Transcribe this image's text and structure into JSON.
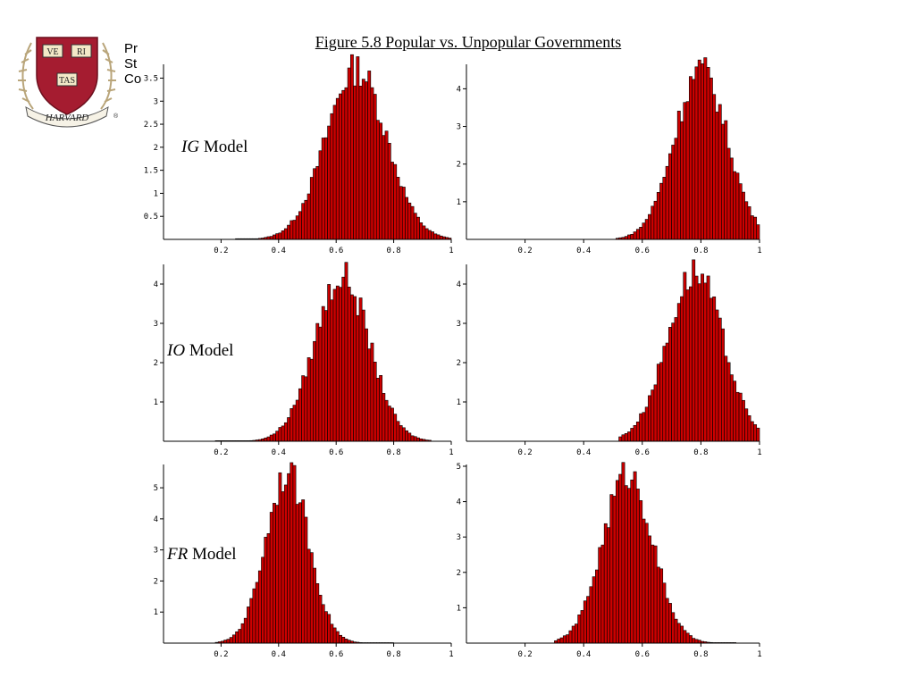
{
  "title": "Figure 5.8 Popular vs. Unpopular Governments",
  "side_text": [
    "Pr",
    "St",
    "Co"
  ],
  "logo": {
    "name": "harvard-shield",
    "motto_parts": [
      "VE",
      "RI",
      "TAS"
    ],
    "banner": "HARVARD",
    "mark": "®",
    "colors": {
      "shield": "#a51c30",
      "book": "#f3e9c8",
      "laurel": "#b9a57a"
    }
  },
  "colors": {
    "bar_fill": "#cc0000",
    "bar_stroke": "#000000"
  },
  "row_labels": [
    {
      "abbr": "IG",
      "rest": " Model"
    },
    {
      "abbr": "IO",
      "rest": " Model"
    },
    {
      "abbr": "FR",
      "rest": " Model"
    }
  ],
  "chart_data": [
    {
      "type": "bar",
      "row": 0,
      "col": 0,
      "title": "",
      "xlabel": "",
      "ylabel": "",
      "xlim": [
        0,
        1
      ],
      "ylim": [
        0,
        3.8
      ],
      "xticks": [
        0.2,
        0.4,
        0.6,
        0.8,
        1
      ],
      "yticks": [
        0.5,
        1,
        1.5,
        2,
        2.5,
        3,
        3.5
      ],
      "xtick_labels": [
        "0.2",
        "0.4",
        "0.6",
        "0.8",
        "1"
      ],
      "ytick_labels": [
        "0.5",
        "1",
        "1.5",
        "2",
        "2.5",
        "3",
        "3.5"
      ],
      "dist": {
        "mu": 0.67,
        "sigma": 0.105,
        "peak": 3.7,
        "left": 0.25,
        "right": 1.0
      }
    },
    {
      "type": "bar",
      "row": 0,
      "col": 1,
      "title": "",
      "xlabel": "",
      "ylabel": "",
      "xlim": [
        0,
        1
      ],
      "ylim": [
        0,
        4.65
      ],
      "xticks": [
        0.2,
        0.4,
        0.6,
        0.8,
        1
      ],
      "yticks": [
        1,
        2,
        3,
        4
      ],
      "xtick_labels": [
        "0.2",
        "0.4",
        "0.6",
        "0.8",
        "1"
      ],
      "ytick_labels": [
        "1",
        "2",
        "3",
        "4"
      ],
      "dist": {
        "mu": 0.8,
        "sigma": 0.09,
        "peak": 4.5,
        "left": 0.51,
        "right": 1.0
      }
    },
    {
      "type": "bar",
      "row": 1,
      "col": 0,
      "title": "",
      "xlabel": "",
      "ylabel": "",
      "xlim": [
        0,
        1
      ],
      "ylim": [
        0,
        4.5
      ],
      "xticks": [
        0.2,
        0.4,
        0.6,
        0.8,
        1
      ],
      "yticks": [
        1,
        2,
        3,
        4
      ],
      "xtick_labels": [
        "0.2",
        "0.4",
        "0.6",
        "0.8",
        "1"
      ],
      "ytick_labels": [
        "1",
        "2",
        "3",
        "4"
      ],
      "dist": {
        "mu": 0.62,
        "sigma": 0.095,
        "peak": 4.2,
        "left": 0.18,
        "right": 0.93
      }
    },
    {
      "type": "bar",
      "row": 1,
      "col": 1,
      "title": "",
      "xlabel": "",
      "ylabel": "",
      "xlim": [
        0,
        1
      ],
      "ylim": [
        0,
        4.5
      ],
      "xticks": [
        0.2,
        0.4,
        0.6,
        0.8,
        1
      ],
      "yticks": [
        1,
        2,
        3,
        4
      ],
      "xtick_labels": [
        "0.2",
        "0.4",
        "0.6",
        "0.8",
        "1"
      ],
      "ytick_labels": [
        "1",
        "2",
        "3",
        "4"
      ],
      "dist": {
        "mu": 0.78,
        "sigma": 0.095,
        "peak": 4.3,
        "left": 0.52,
        "right": 1.0
      }
    },
    {
      "type": "bar",
      "row": 2,
      "col": 0,
      "title": "",
      "xlabel": "",
      "ylabel": "",
      "xlim": [
        0,
        1
      ],
      "ylim": [
        0,
        5.75
      ],
      "xticks": [
        0.2,
        0.4,
        0.6,
        0.8,
        1
      ],
      "yticks": [
        1,
        2,
        3,
        4,
        5
      ],
      "xtick_labels": [
        "0.2",
        "0.4",
        "0.6",
        "0.8",
        "1"
      ],
      "ytick_labels": [
        "1",
        "2",
        "3",
        "4",
        "5"
      ],
      "dist": {
        "mu": 0.43,
        "sigma": 0.075,
        "peak": 5.5,
        "left": 0.18,
        "right": 0.8
      }
    },
    {
      "type": "bar",
      "row": 2,
      "col": 1,
      "title": "",
      "xlabel": "",
      "ylabel": "",
      "xlim": [
        0,
        1
      ],
      "ylim": [
        0,
        5.05
      ],
      "xticks": [
        0.2,
        0.4,
        0.6,
        0.8,
        1
      ],
      "yticks": [
        1,
        2,
        3,
        4,
        5
      ],
      "xtick_labels": [
        "0.2",
        "0.4",
        "0.6",
        "0.8",
        "1"
      ],
      "ytick_labels": [
        "1",
        "2",
        "3",
        "4",
        "5"
      ],
      "dist": {
        "mu": 0.55,
        "sigma": 0.085,
        "peak": 4.8,
        "left": 0.3,
        "right": 0.92
      }
    }
  ]
}
